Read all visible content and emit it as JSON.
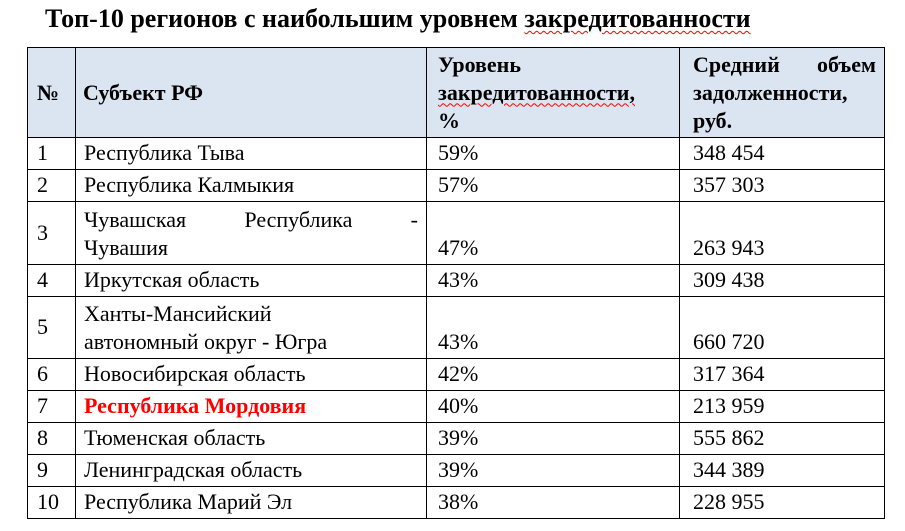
{
  "title": {
    "parts": [
      {
        "text": "Топ-10 регионов с наибольшим уровнем"
      },
      {
        "text": "закредитованности",
        "misspelled": true
      }
    ]
  },
  "colors": {
    "header_bg": "#dbe5f1",
    "border": "#000000",
    "highlight_text": "#ff0000",
    "spellcheck_underline": "#ff0000"
  },
  "table": {
    "columns": [
      {
        "id": "num",
        "label": "№"
      },
      {
        "id": "name",
        "label": "Субъект РФ"
      },
      {
        "id": "level",
        "label": "Уровень закредитованности, %",
        "lines": [
          {
            "text": "Уровень"
          },
          {
            "text": "закредитованности,",
            "misspelled": true
          },
          {
            "text": "%"
          }
        ]
      },
      {
        "id": "debt",
        "label": "Средний объем задолженности, руб.",
        "lines": [
          {
            "words": [
              "Средний",
              "объем"
            ],
            "justified": true
          },
          {
            "text": "задолженности,"
          },
          {
            "text": "руб."
          }
        ]
      }
    ],
    "rows": [
      {
        "num": "1",
        "name": "Республика Тыва",
        "level": "59%",
        "debt": "348 454"
      },
      {
        "num": "2",
        "name": "Республика Калмыкия",
        "level": "57%",
        "debt": "357 303"
      },
      {
        "num": "3",
        "name": "Чувашская Республика - Чувашия",
        "name_lines": [
          {
            "words": [
              "Чувашская",
              "Республика",
              "-"
            ],
            "justified": true
          },
          {
            "text": "Чувашия"
          }
        ],
        "level": "47%",
        "debt": "263 943"
      },
      {
        "num": "4",
        "name": "Иркутская область",
        "level": "43%",
        "debt": "309 438"
      },
      {
        "num": "5",
        "name": "Ханты-Мансийский автономный округ - Югра",
        "name_lines": [
          {
            "text": "Ханты-Мансийский"
          },
          {
            "text": "автономный округ - Югра"
          }
        ],
        "level": "43%",
        "debt": "660 720"
      },
      {
        "num": "6",
        "name": "Новосибирская область",
        "level": "42%",
        "debt": "317 364"
      },
      {
        "num": "7",
        "name": "Республика Мордовия",
        "highlight": true,
        "level": "40%",
        "debt": "213 959"
      },
      {
        "num": "8",
        "name": "Тюменская область",
        "level": "39%",
        "debt": "555 862"
      },
      {
        "num": "9",
        "name": "Ленинградская область",
        "level": "39%",
        "debt": "344 389"
      },
      {
        "num": "10",
        "name": "Республика Марий Эл",
        "level": "38%",
        "debt": "228 955"
      }
    ]
  }
}
